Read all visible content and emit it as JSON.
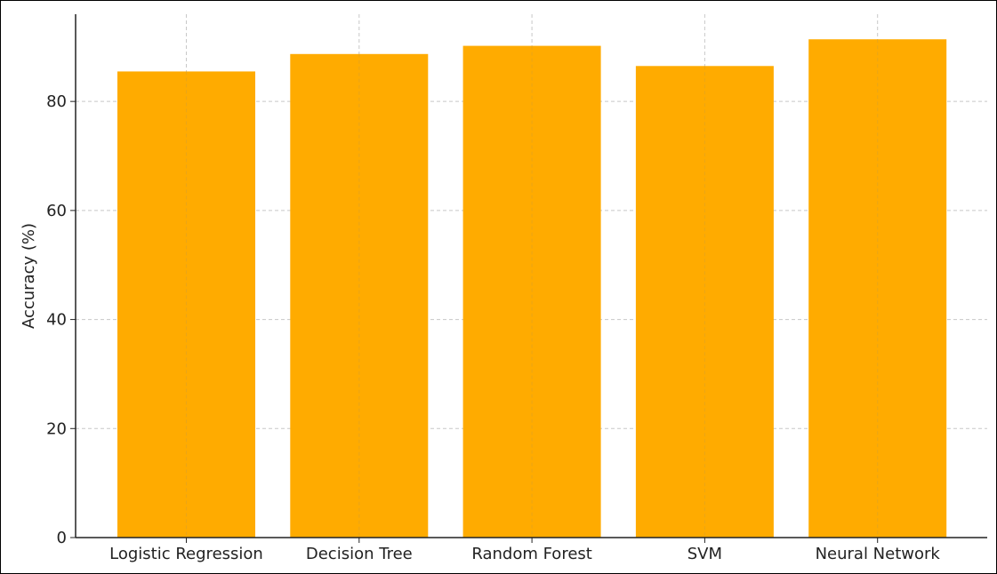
{
  "chart_data": {
    "type": "bar",
    "categories": [
      "Logistic Regression",
      "Decision Tree",
      "Random Forest",
      "SVM",
      "Neural Network"
    ],
    "values": [
      85.5,
      88.7,
      90.2,
      86.5,
      91.4
    ],
    "title": "",
    "xlabel": "",
    "ylabel": "Accuracy (%)",
    "ylim": [
      0,
      96
    ],
    "yticks": [
      "0",
      "20",
      "40",
      "60",
      "80"
    ],
    "grid": true,
    "bar_color": "#FFAB00",
    "grid_color": "#c8c8c8",
    "axis_color": "#222222"
  }
}
